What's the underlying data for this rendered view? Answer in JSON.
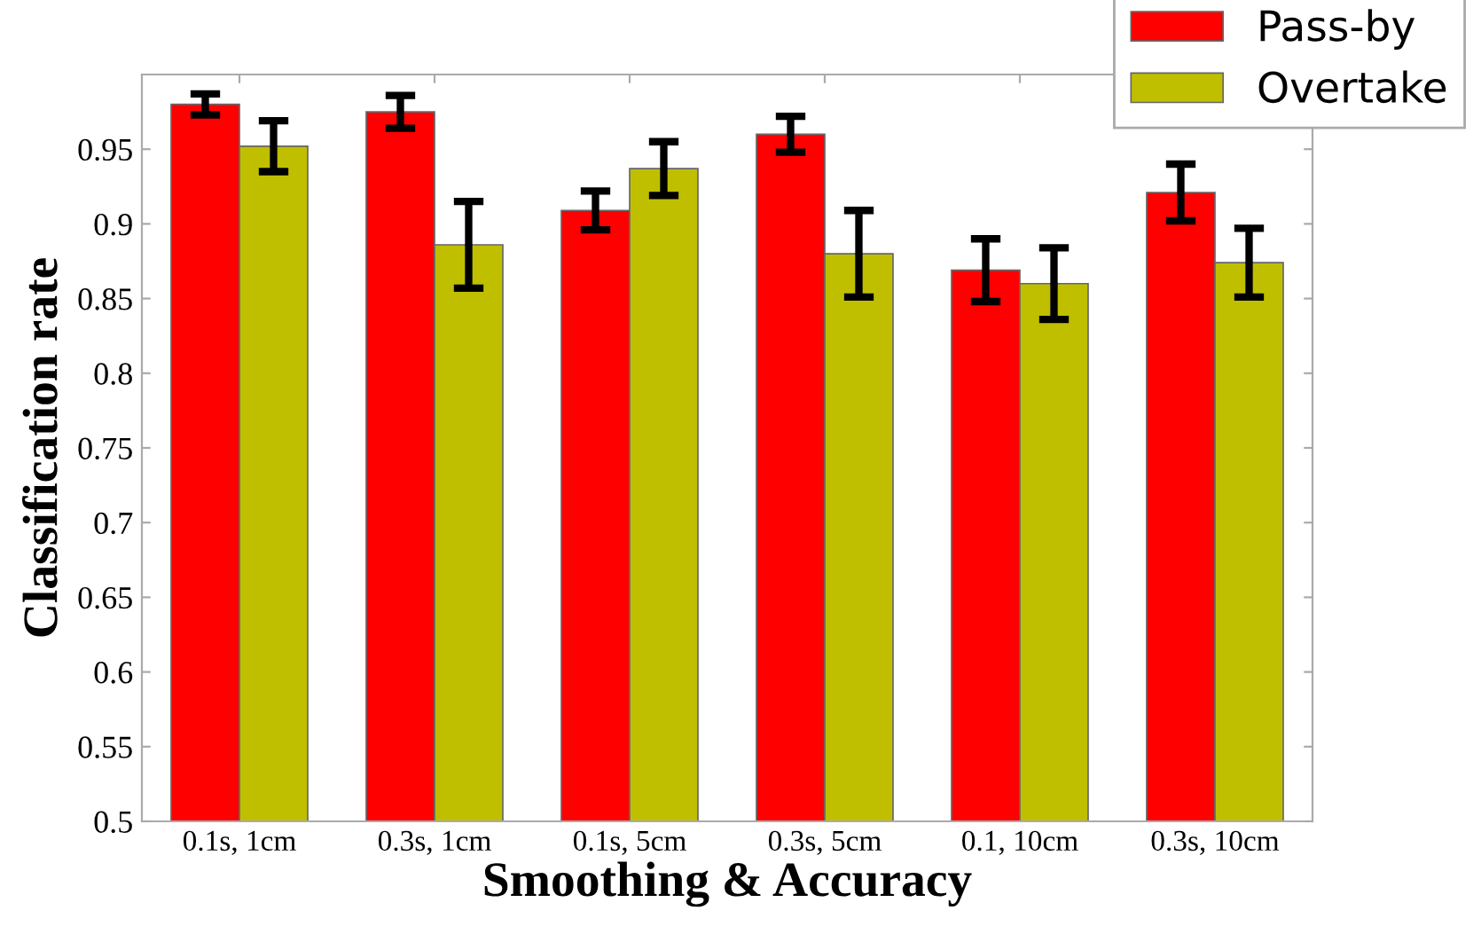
{
  "chart_data": {
    "type": "bar",
    "xlabel": "Smoothing & Accuracy",
    "ylabel": "Classification rate",
    "categories": [
      "0.1s, 1cm",
      "0.3s, 1cm",
      "0.1s, 5cm",
      "0.3s, 5cm",
      "0.1, 10cm",
      "0.3s, 10cm"
    ],
    "series": [
      {
        "name": "Pass-by",
        "color": "#ff0000",
        "values": [
          0.98,
          0.975,
          0.909,
          0.96,
          0.869,
          0.921
        ],
        "errors": [
          0.007,
          0.011,
          0.013,
          0.012,
          0.021,
          0.019
        ]
      },
      {
        "name": "Overtake",
        "color": "#bfbf00",
        "values": [
          0.952,
          0.886,
          0.937,
          0.88,
          0.86,
          0.874
        ],
        "errors": [
          0.017,
          0.029,
          0.018,
          0.029,
          0.024,
          0.023
        ]
      }
    ],
    "ylim": [
      0.5,
      1.0
    ],
    "yticks": [
      0.5,
      0.55,
      0.6,
      0.65,
      0.7,
      0.75,
      0.8,
      0.85,
      0.9,
      0.95
    ],
    "grid": false,
    "legend": "top right"
  }
}
